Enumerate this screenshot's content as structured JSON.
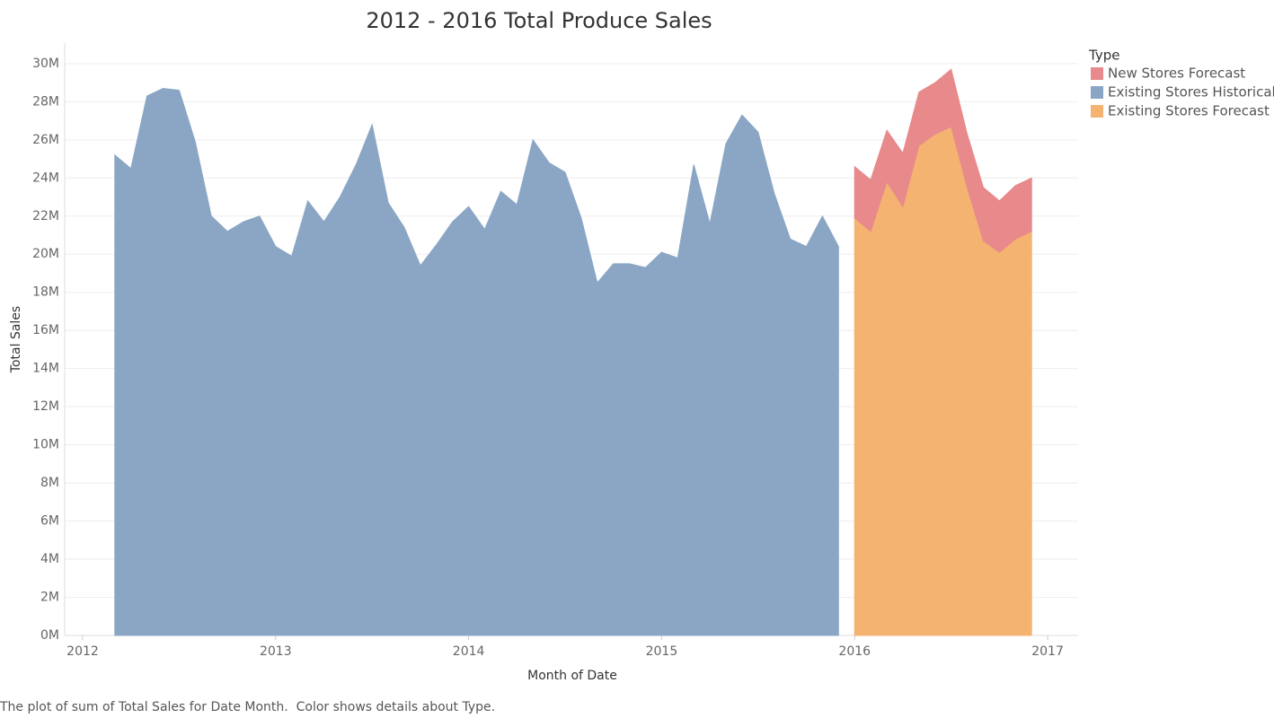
{
  "chart_data": {
    "type": "area",
    "stacked": true,
    "title": "2012 - 2016 Total Produce Sales",
    "x_label": "Month of Date",
    "y_label": "Total Sales",
    "legend_title": "Type",
    "legend": "right",
    "caption": "The plot of sum of Total Sales for Date Month.  Color shows details about Type.",
    "x": [
      2012.1667,
      2012.25,
      2012.3333,
      2012.4167,
      2012.5,
      2012.5833,
      2012.6667,
      2012.75,
      2012.8333,
      2012.9167,
      2013,
      2013.0833,
      2013.1667,
      2013.25,
      2013.3333,
      2013.4167,
      2013.5,
      2013.5833,
      2013.6667,
      2013.75,
      2013.8333,
      2013.9167,
      2014,
      2014.0833,
      2014.1667,
      2014.25,
      2014.3333,
      2014.4167,
      2014.5,
      2014.5833,
      2014.6667,
      2014.75,
      2014.8333,
      2014.9167,
      2015,
      2015.0833,
      2015.1667,
      2015.25,
      2015.3333,
      2015.4167,
      2015.5,
      2015.5833,
      2015.6667,
      2015.75,
      2015.8333,
      2015.9167,
      2016,
      2016.0833,
      2016.1667,
      2016.25,
      2016.3333,
      2016.4167,
      2016.5,
      2016.5833,
      2016.6667,
      2016.75,
      2016.8333,
      2016.9167
    ],
    "series": [
      {
        "name": "New Stores Forecast",
        "color": "#e8898b",
        "values": [
          null,
          null,
          null,
          null,
          null,
          null,
          null,
          null,
          null,
          null,
          null,
          null,
          null,
          null,
          null,
          null,
          null,
          null,
          null,
          null,
          null,
          null,
          null,
          null,
          null,
          null,
          null,
          null,
          null,
          null,
          null,
          null,
          null,
          null,
          null,
          null,
          null,
          null,
          null,
          null,
          null,
          null,
          null,
          null,
          null,
          null,
          2.7,
          2.7,
          2.7,
          2.8,
          2.8,
          2.7,
          3.0,
          2.8,
          2.8,
          2.7,
          2.8,
          2.8
        ]
      },
      {
        "name": "Existing Stores Historical",
        "color": "#8aa6c4",
        "values": [
          25.2,
          24.5,
          28.3,
          28.7,
          28.6,
          25.9,
          22.0,
          21.2,
          21.7,
          22.0,
          20.4,
          19.9,
          22.8,
          21.7,
          23.0,
          24.7,
          26.8,
          22.7,
          21.4,
          19.4,
          20.5,
          21.7,
          22.5,
          21.3,
          23.3,
          22.6,
          26.0,
          24.8,
          24.3,
          21.9,
          18.5,
          19.5,
          19.5,
          19.3,
          20.1,
          19.8,
          24.7,
          21.6,
          25.8,
          27.3,
          26.4,
          23.2,
          20.8,
          20.4,
          22.0,
          20.4,
          null,
          null,
          null,
          null,
          null,
          null,
          null,
          null,
          null,
          null,
          null,
          null
        ]
      },
      {
        "name": "Existing Stores Forecast",
        "color": "#f4b371",
        "values": [
          null,
          null,
          null,
          null,
          null,
          null,
          null,
          null,
          null,
          null,
          null,
          null,
          null,
          null,
          null,
          null,
          null,
          null,
          null,
          null,
          null,
          null,
          null,
          null,
          null,
          null,
          null,
          null,
          null,
          null,
          null,
          null,
          null,
          null,
          null,
          null,
          null,
          null,
          null,
          null,
          null,
          null,
          null,
          null,
          null,
          null,
          21.9,
          21.2,
          23.8,
          22.5,
          25.7,
          26.3,
          26.7,
          23.5,
          20.7,
          20.1,
          20.8,
          21.2
        ]
      }
    ],
    "xlim": [
      2011.907,
      2017.158
    ],
    "xticks": [
      2012,
      2013,
      2014,
      2015,
      2016,
      2017
    ],
    "ylim": [
      0,
      30.7
    ],
    "yticks": [
      {
        "value": 0,
        "label": "0M"
      },
      {
        "value": 2,
        "label": "2M"
      },
      {
        "value": 4,
        "label": "4M"
      },
      {
        "value": 6,
        "label": "6M"
      },
      {
        "value": 8,
        "label": "8M"
      },
      {
        "value": 10,
        "label": "10M"
      },
      {
        "value": 12,
        "label": "12M"
      },
      {
        "value": 14,
        "label": "14M"
      },
      {
        "value": 16,
        "label": "16M"
      },
      {
        "value": 18,
        "label": "18M"
      },
      {
        "value": 20,
        "label": "20M"
      },
      {
        "value": 22,
        "label": "22M"
      },
      {
        "value": 24,
        "label": "24M"
      },
      {
        "value": 26,
        "label": "26M"
      },
      {
        "value": 28,
        "label": "28M"
      },
      {
        "value": 30,
        "label": "30M"
      }
    ],
    "grid": true
  }
}
